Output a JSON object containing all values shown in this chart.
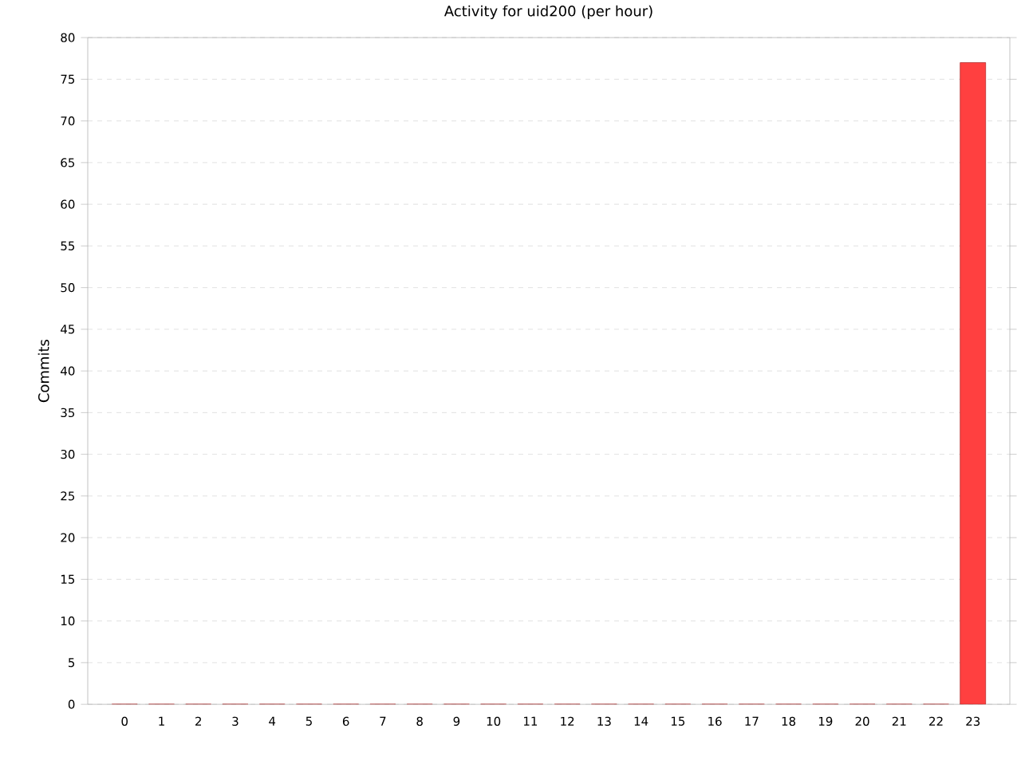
{
  "chart_data": {
    "type": "bar",
    "title": "Activity for uid200 (per hour)",
    "ylabel": "Commits",
    "categories": [
      "0",
      "1",
      "2",
      "3",
      "4",
      "5",
      "6",
      "7",
      "8",
      "9",
      "10",
      "11",
      "12",
      "13",
      "14",
      "15",
      "16",
      "17",
      "18",
      "19",
      "20",
      "21",
      "22",
      "23"
    ],
    "values": [
      0,
      0,
      0,
      0,
      0,
      0,
      0,
      0,
      0,
      0,
      0,
      0,
      0,
      0,
      0,
      0,
      0,
      0,
      0,
      0,
      0,
      0,
      0,
      77
    ],
    "color": "#ff4040",
    "ylim": [
      0,
      80
    ],
    "yticks": [
      0,
      5,
      10,
      15,
      20,
      25,
      30,
      35,
      40,
      45,
      50,
      55,
      60,
      65,
      70,
      75,
      80
    ],
    "grid": "y"
  }
}
